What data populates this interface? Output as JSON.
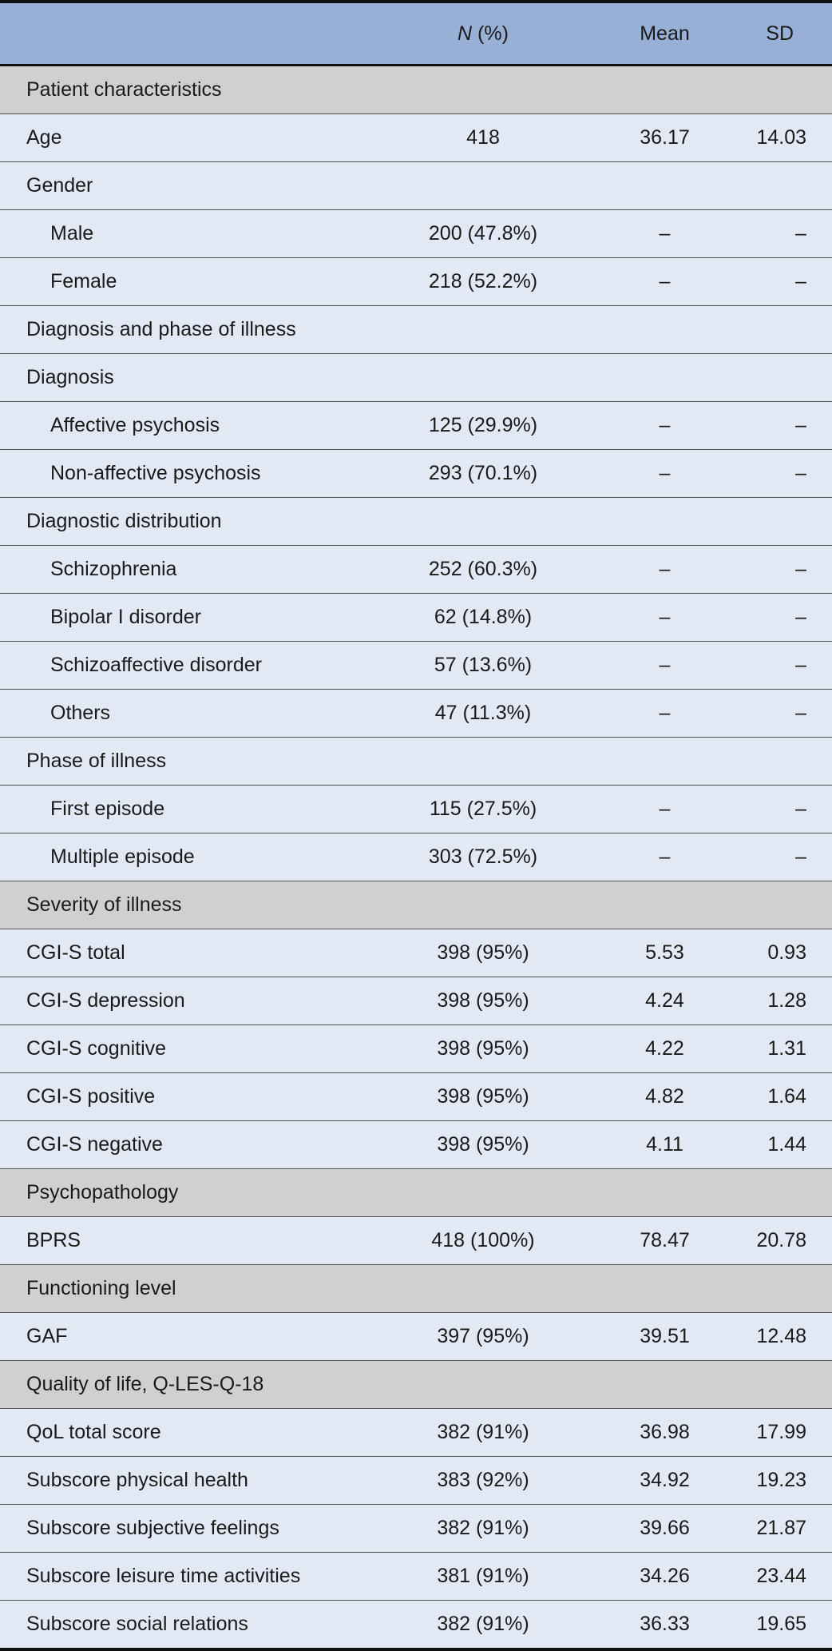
{
  "header": {
    "label": "",
    "n_italic": "N",
    "n_rest": " (%)",
    "mean": "Mean",
    "sd": "SD"
  },
  "rows": [
    {
      "type": "section",
      "label": "Patient characteristics"
    },
    {
      "type": "row",
      "indent": false,
      "label": "Age",
      "n": "418",
      "mean": "36.17",
      "sd": "14.03"
    },
    {
      "type": "row",
      "indent": false,
      "label": "Gender",
      "n": "",
      "mean": "",
      "sd": ""
    },
    {
      "type": "row",
      "indent": true,
      "label": "Male",
      "n": "200 (47.8%)",
      "mean": "–",
      "sd": "–"
    },
    {
      "type": "row",
      "indent": true,
      "label": "Female",
      "n": "218 (52.2%)",
      "mean": "–",
      "sd": "–"
    },
    {
      "type": "row",
      "indent": false,
      "label": "Diagnosis and phase of illness",
      "n": "",
      "mean": "",
      "sd": ""
    },
    {
      "type": "row",
      "indent": false,
      "label": "Diagnosis",
      "n": "",
      "mean": "",
      "sd": ""
    },
    {
      "type": "row",
      "indent": true,
      "label": "Affective psychosis",
      "n": "125 (29.9%)",
      "mean": "–",
      "sd": "–"
    },
    {
      "type": "row",
      "indent": true,
      "label": "Non-affective psychosis",
      "n": "293 (70.1%)",
      "mean": "–",
      "sd": "–"
    },
    {
      "type": "row",
      "indent": false,
      "label": "Diagnostic distribution",
      "n": "",
      "mean": "",
      "sd": ""
    },
    {
      "type": "row",
      "indent": true,
      "label": "Schizophrenia",
      "n": "252 (60.3%)",
      "mean": "–",
      "sd": "–"
    },
    {
      "type": "row",
      "indent": true,
      "label": "Bipolar I disorder",
      "n": "62 (14.8%)",
      "mean": "–",
      "sd": "–"
    },
    {
      "type": "row",
      "indent": true,
      "label": "Schizoaffective disorder",
      "n": "57 (13.6%)",
      "mean": "–",
      "sd": "–"
    },
    {
      "type": "row",
      "indent": true,
      "label": "Others",
      "n": "47 (11.3%)",
      "mean": "–",
      "sd": "–"
    },
    {
      "type": "row",
      "indent": false,
      "label": "Phase of illness",
      "n": "",
      "mean": "",
      "sd": ""
    },
    {
      "type": "row",
      "indent": true,
      "label": "First episode",
      "n": "115 (27.5%)",
      "mean": "–",
      "sd": "–"
    },
    {
      "type": "row",
      "indent": true,
      "label": "Multiple episode",
      "n": "303 (72.5%)",
      "mean": "–",
      "sd": "–"
    },
    {
      "type": "section",
      "label": "Severity of illness"
    },
    {
      "type": "row",
      "indent": false,
      "label": "CGI-S total",
      "n": "398 (95%)",
      "mean": "5.53",
      "sd": "0.93"
    },
    {
      "type": "row",
      "indent": false,
      "label": "CGI-S depression",
      "n": "398 (95%)",
      "mean": "4.24",
      "sd": "1.28"
    },
    {
      "type": "row",
      "indent": false,
      "label": "CGI-S cognitive",
      "n": "398 (95%)",
      "mean": "4.22",
      "sd": "1.31"
    },
    {
      "type": "row",
      "indent": false,
      "label": "CGI-S positive",
      "n": "398 (95%)",
      "mean": "4.82",
      "sd": "1.64"
    },
    {
      "type": "row",
      "indent": false,
      "label": "CGI-S negative",
      "n": "398 (95%)",
      "mean": "4.11",
      "sd": "1.44"
    },
    {
      "type": "section",
      "label": "Psychopathology"
    },
    {
      "type": "row",
      "indent": false,
      "label": "BPRS",
      "n": "418 (100%)",
      "mean": "78.47",
      "sd": "20.78"
    },
    {
      "type": "section",
      "label": "Functioning level"
    },
    {
      "type": "row",
      "indent": false,
      "label": "GAF",
      "n": "397 (95%)",
      "mean": "39.51",
      "sd": "12.48"
    },
    {
      "type": "section",
      "label": "Quality of life, Q-LES-Q-18"
    },
    {
      "type": "row",
      "indent": false,
      "label": "QoL total score",
      "n": "382 (91%)",
      "mean": "36.98",
      "sd": "17.99"
    },
    {
      "type": "row",
      "indent": false,
      "label": "Subscore physical health",
      "n": "383 (92%)",
      "mean": "34.92",
      "sd": "19.23"
    },
    {
      "type": "row",
      "indent": false,
      "label": "Subscore subjective feelings",
      "n": "382 (91%)",
      "mean": "39.66",
      "sd": "21.87"
    },
    {
      "type": "row",
      "indent": false,
      "label": "Subscore leisure time activities",
      "n": "381 (91%)",
      "mean": "34.26",
      "sd": "23.44"
    },
    {
      "type": "row",
      "indent": false,
      "label": "Subscore social relations",
      "n": "382 (91%)",
      "mean": "36.33",
      "sd": "19.65"
    }
  ]
}
